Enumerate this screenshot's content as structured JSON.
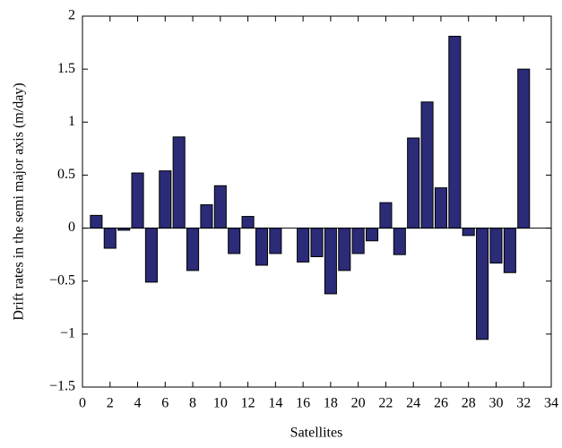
{
  "chart_data": {
    "type": "bar",
    "x_label": "Satellites",
    "y_label": "Drift rates in the semi major axis (m/day)",
    "x": [
      1,
      2,
      3,
      4,
      5,
      6,
      7,
      8,
      9,
      10,
      11,
      12,
      13,
      14,
      16,
      17,
      18,
      19,
      20,
      21,
      22,
      23,
      24,
      25,
      26,
      27,
      28,
      29,
      30,
      31,
      32
    ],
    "values": [
      0.12,
      -0.19,
      -0.02,
      0.52,
      -0.51,
      0.54,
      0.86,
      -0.4,
      0.22,
      0.4,
      -0.24,
      0.11,
      -0.35,
      -0.24,
      -0.32,
      -0.27,
      -0.62,
      -0.4,
      -0.24,
      -0.12,
      0.24,
      -0.25,
      0.85,
      1.19,
      0.38,
      1.81,
      -0.07,
      -1.05,
      -0.33,
      -0.42,
      1.5
    ],
    "color": "#2b2b78",
    "xlim": [
      0,
      34
    ],
    "xticks": [
      0,
      2,
      4,
      6,
      8,
      10,
      12,
      14,
      16,
      18,
      20,
      22,
      24,
      26,
      28,
      30,
      32,
      34
    ],
    "ylim": [
      -1.5,
      2
    ],
    "yticks": [
      {
        "value": -1.5,
        "label": "−1.5"
      },
      {
        "value": -1,
        "label": "−1"
      },
      {
        "value": -0.5,
        "label": "−0.5"
      },
      0,
      0.5,
      1,
      1.5,
      2
    ]
  }
}
